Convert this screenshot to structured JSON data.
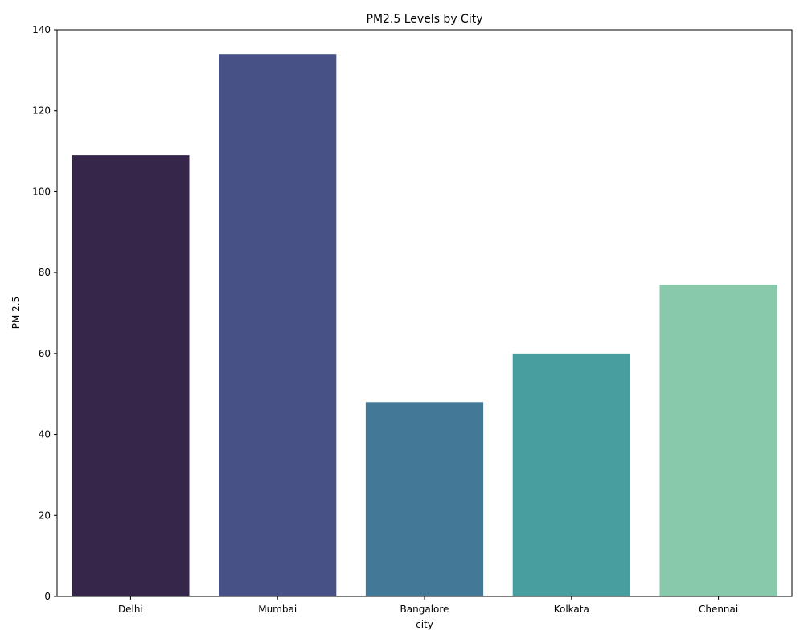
{
  "chart_data": {
    "type": "bar",
    "title": "PM2.5 Levels by City",
    "xlabel": "city",
    "ylabel": "PM 2.5",
    "categories": [
      "Delhi",
      "Mumbai",
      "Bangalore",
      "Kolkata",
      "Chennai"
    ],
    "values": [
      109,
      134,
      48,
      60,
      77
    ],
    "colors": [
      "#35264a",
      "#485186",
      "#437896",
      "#489e9f",
      "#87c9aa"
    ],
    "ylim": [
      0,
      140
    ],
    "yticks": [
      0,
      20,
      40,
      60,
      80,
      100,
      120,
      140
    ],
    "grid": false,
    "legend": "none"
  }
}
